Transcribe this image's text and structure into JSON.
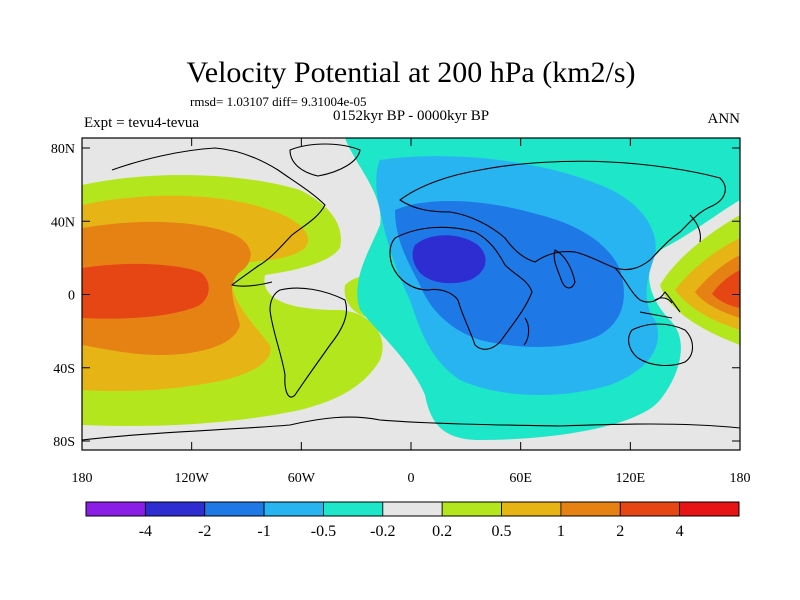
{
  "title": "Velocity Potential at 200 hPa (km2/s)",
  "stats": "rmsd= 1.03107 diff= 9.31004e-05",
  "left_label": "Expt = tevu4-tevua",
  "center_label": "0152kyr BP - 0000kyr BP",
  "right_label": "ANN",
  "x_ticks": [
    "180",
    "120W",
    "60W",
    "0",
    "60E",
    "120E",
    "180"
  ],
  "y_ticks": [
    "80N",
    "40N",
    "0",
    "40S",
    "80S"
  ],
  "colorbar": {
    "colors": [
      "#8a1ee6",
      "#2d2dd2",
      "#1e78e6",
      "#28b4f0",
      "#1ee6c8",
      "#e6e6e6",
      "#b4e61e",
      "#e6b414",
      "#e68214",
      "#e64614",
      "#e61414"
    ],
    "labels": [
      "-4",
      "-2",
      "-1",
      "-0.5",
      "-0.2",
      "0.2",
      "0.5",
      "1",
      "2",
      "4"
    ]
  },
  "colors": {
    "neutral": "#e6e6e6",
    "coastline": "#000000"
  }
}
